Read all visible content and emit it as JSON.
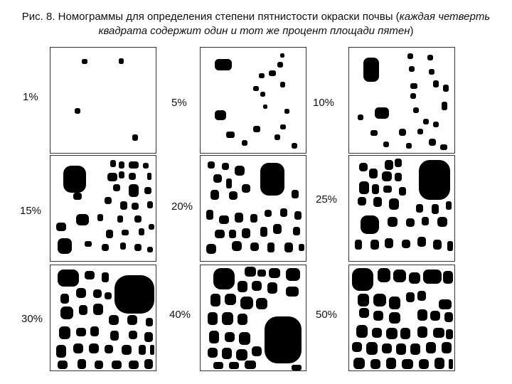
{
  "caption": {
    "plain": "Рис. 8. Номограммы для определения степени пятнистости окраски почвы (",
    "italic": "каждая четверть квадрата содержит один и тот же процент площади пятен",
    "close": ")"
  },
  "panels": [
    {
      "label": "1%"
    },
    {
      "label": "5%"
    },
    {
      "label": "10%"
    },
    {
      "label": "15%"
    },
    {
      "label": "20%"
    },
    {
      "label": "25%"
    },
    {
      "label": "30%"
    },
    {
      "label": "40%"
    },
    {
      "label": "50%"
    }
  ],
  "colors": {
    "spot": "#000000",
    "frame": "#333333",
    "background": "#ffffff"
  }
}
